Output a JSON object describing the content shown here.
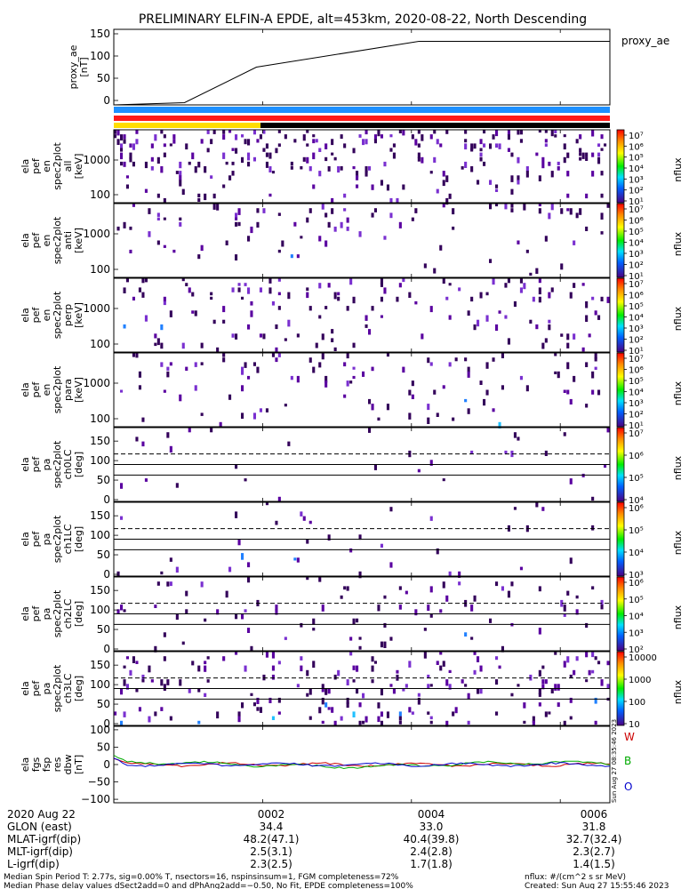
{
  "title": "PRELIMINARY ELFIN-A EPDE, alt=453km, 2020-08-22, North Descending",
  "colors": {
    "bar_blue": "#1e90ff",
    "bar_red": "#ff1a1a",
    "bar_yellow": "#ffdd00",
    "bar_black": "#000000",
    "fgm_bw": "#cc0000",
    "fgm_bb": "#00aa00",
    "fgm_bo": "#0000cc"
  },
  "chart_data": [
    {
      "type": "line",
      "id": "proxy_ae",
      "ylabel": [
        "proxy_ae",
        "[nT]"
      ],
      "legend": "proxy_ae",
      "ylim": [
        -10,
        160
      ],
      "yticks": [
        "150",
        "100",
        "50",
        "0"
      ],
      "yticks_values": [
        150,
        100,
        50,
        0
      ],
      "x_minutes": [
        0,
        2.85,
        5.75,
        12.3,
        20.0
      ],
      "y": [
        -12,
        -5,
        75,
        133,
        133
      ]
    },
    {
      "type": "heatmap",
      "id": "pef_en_all",
      "ylabel": [
        "ela",
        "pef",
        "en",
        "spec2plot",
        "all",
        "[keV]"
      ],
      "yticks": [
        "1000",
        "100"
      ],
      "cbar_label": "nflux",
      "cbar_ticks": [
        "10⁷",
        "10⁶",
        "10⁵",
        "10⁴",
        "10³",
        "10²",
        "10¹"
      ],
      "cbar_ticks_values": [
        7,
        6,
        5,
        4,
        3,
        2,
        1
      ]
    },
    {
      "type": "heatmap",
      "id": "pef_en_anti",
      "ylabel": [
        "ela",
        "pef",
        "en",
        "spec2plot",
        "anti",
        "[keV]"
      ],
      "yticks": [
        "1000",
        "100"
      ],
      "cbar_label": "nflux",
      "cbar_ticks": [
        "10⁷",
        "10⁶",
        "10⁵",
        "10⁴",
        "10³",
        "10²",
        "10¹"
      ],
      "cbar_ticks_values": [
        7,
        6,
        5,
        4,
        3,
        2,
        1
      ]
    },
    {
      "type": "heatmap",
      "id": "pef_en_perp",
      "ylabel": [
        "ela",
        "pef",
        "en",
        "spec2plot",
        "perp",
        "[keV]"
      ],
      "yticks": [
        "1000",
        "100"
      ],
      "cbar_label": "nflux",
      "cbar_ticks": [
        "10⁷",
        "10⁶",
        "10⁵",
        "10⁴",
        "10³",
        "10²",
        "10¹"
      ],
      "cbar_ticks_values": [
        7,
        6,
        5,
        4,
        3,
        2,
        1
      ]
    },
    {
      "type": "heatmap",
      "id": "pef_en_para",
      "ylabel": [
        "ela",
        "pef",
        "en",
        "spec2plot",
        "para",
        "[keV]"
      ],
      "yticks": [
        "1000",
        "100"
      ],
      "cbar_label": "nflux",
      "cbar_ticks": [
        "10⁷",
        "10⁶",
        "10⁵",
        "10⁴",
        "10³",
        "10²",
        "10¹"
      ],
      "cbar_ticks_values": [
        7,
        6,
        5,
        4,
        3,
        2,
        1
      ]
    },
    {
      "type": "heatmap",
      "id": "pef_pa_ch0",
      "ylabel": [
        "ela",
        "pef",
        "pa",
        "spec2plot",
        "ch0LC",
        "[deg]"
      ],
      "yticks": [
        "150",
        "100",
        "50",
        "0"
      ],
      "cbar_label": "nflux",
      "cbar_ticks": [
        "10⁷",
        "10⁶",
        "10⁵",
        "10⁴"
      ],
      "cbar_ticks_values": [
        7,
        6,
        5,
        4
      ]
    },
    {
      "type": "heatmap",
      "id": "pef_pa_ch1",
      "ylabel": [
        "ela",
        "pef",
        "pa",
        "spec2plot",
        "ch1LC",
        "[deg]"
      ],
      "yticks": [
        "150",
        "100",
        "50",
        "0"
      ],
      "cbar_label": "nflux",
      "cbar_ticks": [
        "10⁶",
        "10⁵",
        "10⁴",
        "10³"
      ],
      "cbar_ticks_values": [
        6,
        5,
        4,
        3
      ]
    },
    {
      "type": "heatmap",
      "id": "pef_pa_ch2",
      "ylabel": [
        "ela",
        "pef",
        "pa",
        "spec2plot",
        "ch2LC",
        "[deg]"
      ],
      "yticks": [
        "150",
        "100",
        "50",
        "0"
      ],
      "cbar_label": "nflux",
      "cbar_ticks": [
        "10⁶",
        "10⁵",
        "10⁴",
        "10³",
        "10²"
      ],
      "cbar_ticks_values": [
        6,
        5,
        4,
        3,
        2
      ]
    },
    {
      "type": "heatmap",
      "id": "pef_pa_ch3",
      "ylabel": [
        "ela",
        "pef",
        "pa",
        "spec2plot",
        "ch3LC",
        "[deg]"
      ],
      "yticks": [
        "150",
        "100",
        "50",
        "0"
      ],
      "cbar_label": "nflux",
      "cbar_ticks": [
        "10000",
        "1000",
        "100",
        "10"
      ],
      "cbar_ticks_values": [
        4,
        3,
        2,
        1
      ]
    },
    {
      "type": "line",
      "id": "fgm_dbw",
      "ylabel": [
        "ela",
        "fgs",
        "fsp",
        "res",
        "dbw",
        "[nT]"
      ],
      "ylim": [
        -110,
        110
      ],
      "yticks": [
        "100",
        "50",
        "0",
        "−50",
        "−100"
      ],
      "yticks_values": [
        100,
        50,
        0,
        -50,
        -100
      ],
      "legend_entries": [
        "W",
        "B",
        "O"
      ]
    }
  ],
  "x_axis": {
    "labels": [
      "0002",
      "0004",
      "0006"
    ],
    "minutes": [
      6.0,
      12.0,
      18.0
    ],
    "x_range_minutes": [
      0,
      20
    ]
  },
  "orbit_table": {
    "rows": [
      {
        "label": "2020 Aug 22",
        "values": [
          "0002",
          "0004",
          "0006"
        ]
      },
      {
        "label": "GLON (east)",
        "values": [
          "34.4",
          "33.0",
          "31.8"
        ]
      },
      {
        "label": "MLAT-igrf(dip)",
        "values": [
          "48.2(47.1)",
          "40.4(39.8)",
          "32.7(32.4)"
        ]
      },
      {
        "label": "MLT-igrf(dip)",
        "values": [
          "2.5(3.1)",
          "2.4(2.8)",
          "2.3(2.7)"
        ]
      },
      {
        "label": "L-igrf(dip)",
        "values": [
          "2.3(2.5)",
          "1.7(1.8)",
          "1.4(1.5)"
        ]
      }
    ]
  },
  "vertical_stamp": "Sun Aug 27 08:35:46 2023",
  "footer": {
    "line1": "Median Spin Period T: 2.77s, sig=0.00% T, nsectors=16, nspinsinsum=1, FGM completeness=72%",
    "line2": "Median Phase delay values dSect2add=0 and dPhAng2add=−0.50, No Fit, EPDE completeness=100%",
    "right1": "nflux: #/(cm^2 s sr MeV)",
    "right2": "Created: Sun Aug 27 15:55:46 2023"
  }
}
